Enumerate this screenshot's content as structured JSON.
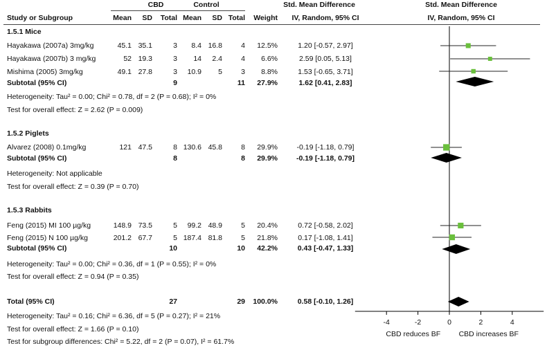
{
  "header": {
    "cbd_group": "CBD",
    "control_group": "Control",
    "smd_title": "Std. Mean Difference",
    "smd_method": "IV, Random, 95% CI",
    "plot_title": "Std. Mean Difference",
    "plot_method": "IV, Random, 95% CI",
    "columns": {
      "study": "Study or Subgroup",
      "mean1": "Mean",
      "sd1": "SD",
      "total1": "Total",
      "mean2": "Mean",
      "sd2": "SD",
      "total2": "Total",
      "weight": "Weight"
    }
  },
  "subgroups": [
    {
      "title": "1.5.1 Mice",
      "studies": [
        {
          "name": "Hayakawa (2007a) 3mg/kg",
          "m1": "45.1",
          "sd1": "35.1",
          "n1": "3",
          "m2": "8.4",
          "sd2": "16.8",
          "n2": "4",
          "weight": "12.5%",
          "ci": "1.20 [-0.57, 2.97]"
        },
        {
          "name": "Hayakawa (2007b)  3 mg/kg",
          "m1": "52",
          "sd1": "19.3",
          "n1": "3",
          "m2": "14",
          "sd2": "2.4",
          "n2": "4",
          "weight": "6.6%",
          "ci": "2.59 [0.05, 5.13]"
        },
        {
          "name": "Mishima (2005) 3mg/kg",
          "m1": "49.1",
          "sd1": "27.8",
          "n1": "3",
          "m2": "10.9",
          "sd2": "5",
          "n2": "3",
          "weight": "8.8%",
          "ci": "1.53 [-0.65, 3.71]"
        }
      ],
      "subtotal": {
        "label": "Subtotal (95% CI)",
        "n1": "9",
        "n2": "11",
        "weight": "27.9%",
        "ci": "1.62 [0.41, 2.83]"
      },
      "heterogeneity": "Heterogeneity: Tau² = 0.00; Chi² = 0.78, df = 2 (P = 0.68); I² = 0%",
      "overall": "Test for overall effect: Z = 2.62 (P = 0.009)"
    },
    {
      "title": "1.5.2 Piglets",
      "studies": [
        {
          "name": "Alvarez (2008) 0.1mg/kg",
          "m1": "121",
          "sd1": "47.5",
          "n1": "8",
          "m2": "130.6",
          "sd2": "45.8",
          "n2": "8",
          "weight": "29.9%",
          "ci": "-0.19 [-1.18, 0.79]"
        }
      ],
      "subtotal": {
        "label": "Subtotal (95% CI)",
        "n1": "8",
        "n2": "8",
        "weight": "29.9%",
        "ci": "-0.19 [-1.18, 0.79]"
      },
      "heterogeneity": "Heterogeneity: Not applicable",
      "overall": "Test for overall effect: Z = 0.39 (P = 0.70)"
    },
    {
      "title": "1.5.3 Rabbits",
      "studies": [
        {
          "name": "Feng (2015) MI 100 µg/kg",
          "m1": "148.9",
          "sd1": "73.5",
          "n1": "5",
          "m2": "99.2",
          "sd2": "48.9",
          "n2": "5",
          "weight": "20.4%",
          "ci": "0.72 [-0.58, 2.02]"
        },
        {
          "name": "Feng (2015) N 100 µg/kg",
          "m1": "201.2",
          "sd1": "67.7",
          "n1": "5",
          "m2": "187.4",
          "sd2": "81.8",
          "n2": "5",
          "weight": "21.8%",
          "ci": "0.17 [-1.08, 1.41]"
        }
      ],
      "subtotal": {
        "label": "Subtotal (95% CI)",
        "n1": "10",
        "n2": "10",
        "weight": "42.2%",
        "ci": "0.43 [-0.47, 1.33]"
      },
      "heterogeneity": "Heterogeneity: Tau² = 0.00; Chi² = 0.36, df = 1 (P = 0.55); I² = 0%",
      "overall": "Test for overall effect: Z = 0.94 (P = 0.35)"
    }
  ],
  "total": {
    "label": "Total (95% CI)",
    "n1": "27",
    "n2": "29",
    "weight": "100.0%",
    "ci": "0.58 [-0.10, 1.26]",
    "heterogeneity": "Heterogeneity: Tau² = 0.16; Chi² = 6.36, df = 5 (P = 0.27); I² = 21%",
    "overall": "Test for overall effect: Z = 1.66 (P = 0.10)",
    "subgroup_diff": "Test for subgroup differences: Chi² = 5.22, df = 2 (P = 0.07), I² = 61.7%"
  },
  "chart_data": {
    "type": "forest",
    "title": "Std. Mean Difference",
    "subtitle": "IV, Random, 95% CI",
    "xlim": [
      -6,
      6
    ],
    "ticks": [
      -4,
      -2,
      0,
      2,
      4
    ],
    "tick_labels": [
      "-4",
      "-2",
      "0",
      "2",
      "4"
    ],
    "xlabel_left": "CBD reduces BF",
    "xlabel_right": "CBD increases BF",
    "study_color": "#6abf3c",
    "diamond_color": "#000000",
    "studies": [
      {
        "name": "Hayakawa (2007a) 3mg/kg",
        "est": 1.2,
        "lo": -0.57,
        "hi": 2.97,
        "weight": 12.5
      },
      {
        "name": "Hayakawa (2007b)  3 mg/kg",
        "est": 2.59,
        "lo": 0.05,
        "hi": 5.13,
        "weight": 6.6
      },
      {
        "name": "Mishima (2005) 3mg/kg",
        "est": 1.53,
        "lo": -0.65,
        "hi": 3.71,
        "weight": 8.8
      },
      {
        "name": "Alvarez (2008) 0.1mg/kg",
        "est": -0.19,
        "lo": -1.18,
        "hi": 0.79,
        "weight": 29.9
      },
      {
        "name": "Feng (2015) MI 100 µg/kg",
        "est": 0.72,
        "lo": -0.58,
        "hi": 2.02,
        "weight": 20.4
      },
      {
        "name": "Feng (2015) N 100 µg/kg",
        "est": 0.17,
        "lo": -1.08,
        "hi": 1.41,
        "weight": 21.8
      }
    ],
    "summaries": [
      {
        "name": "Subtotal Mice",
        "est": 1.62,
        "lo": 0.41,
        "hi": 2.83
      },
      {
        "name": "Subtotal Piglets",
        "est": -0.19,
        "lo": -1.18,
        "hi": 0.79
      },
      {
        "name": "Subtotal Rabbits",
        "est": 0.43,
        "lo": -0.47,
        "hi": 1.33
      },
      {
        "name": "Total",
        "est": 0.58,
        "lo": -0.1,
        "hi": 1.26
      }
    ]
  }
}
